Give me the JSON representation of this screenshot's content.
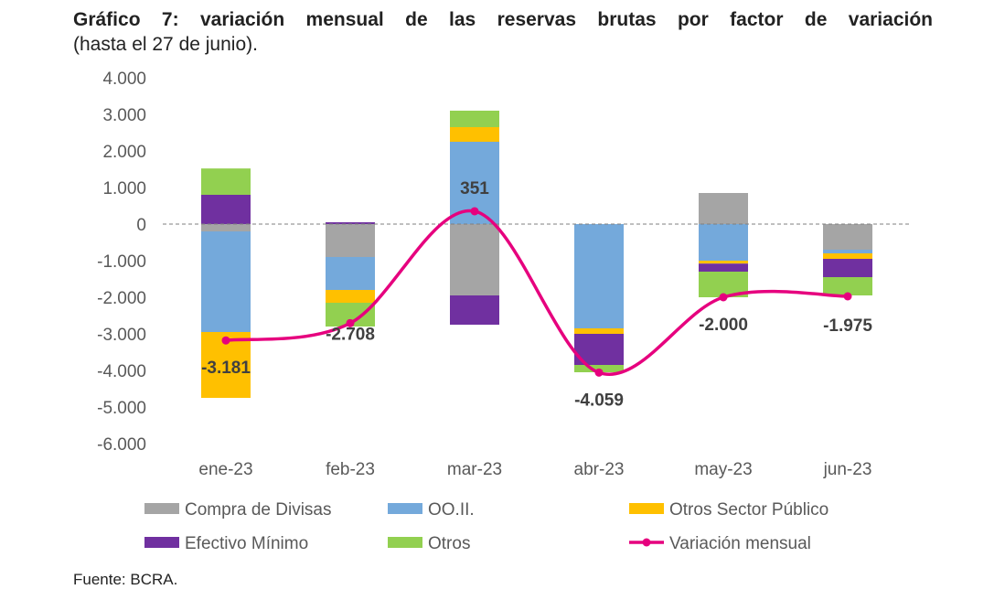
{
  "title": "Gráfico 7: variación mensual de las reservas brutas por factor de variación",
  "subtitle": "(hasta el 27 de junio).",
  "source": "Fuente: BCRA.",
  "chart_data": {
    "type": "bar",
    "stacked": true,
    "categories": [
      "ene-23",
      "feb-23",
      "mar-23",
      "abr-23",
      "may-23",
      "jun-23"
    ],
    "ylim": [
      -6000,
      4000
    ],
    "yticks": [
      4000,
      3000,
      2000,
      1000,
      0,
      -1000,
      -2000,
      -3000,
      -4000,
      -5000,
      -6000
    ],
    "ytick_labels": [
      "4.000",
      "3.000",
      "2.000",
      "1.000",
      "0",
      "-1.000",
      "-2.000",
      "-3.000",
      "-4.000",
      "-5.000",
      "-6.000"
    ],
    "series": [
      {
        "name": "Compra de Divisas",
        "color": "#A5A5A5",
        "values": [
          -200,
          -900,
          -1950,
          0,
          850,
          -700
        ]
      },
      {
        "name": "OO.II.",
        "color": "#74A9DB",
        "values": [
          -2750,
          -900,
          2250,
          -2850,
          -1000,
          -100
        ]
      },
      {
        "name": "Otros Sector Público",
        "color": "#FFC000",
        "values": [
          -1800,
          -350,
          400,
          -150,
          -80,
          -150
        ]
      },
      {
        "name": "Efectivo Mínimo",
        "color": "#7030A0",
        "values": [
          800,
          50,
          -800,
          -850,
          -220,
          -500
        ]
      },
      {
        "name": "Otros",
        "color": "#92D050",
        "values": [
          720,
          -650,
          450,
          -200,
          -700,
          -500
        ]
      }
    ],
    "line": {
      "name": "Variación mensual",
      "color": "#E6007E",
      "values": [
        -3181,
        -2708,
        351,
        -4059,
        -2000,
        -1975
      ]
    },
    "data_labels": [
      "-3.181",
      "-2.708",
      "351",
      "-4.059",
      "-2.000",
      "-1.975"
    ],
    "legend_position": "bottom",
    "zero_line": "dashed"
  }
}
